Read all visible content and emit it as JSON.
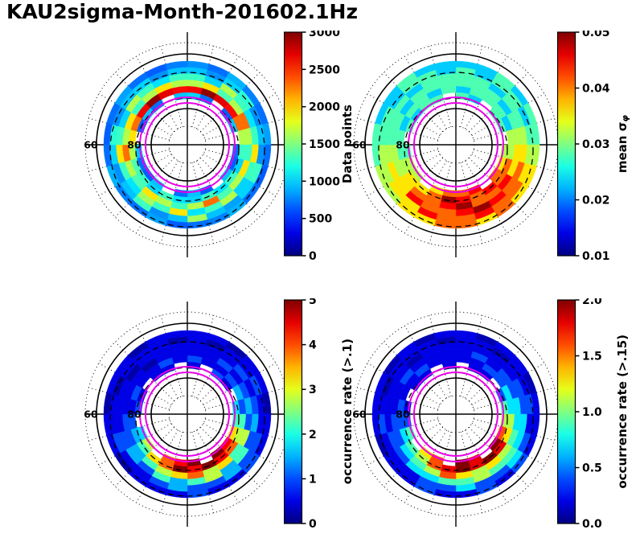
{
  "title": "KAU2sigma-Month-201602.1Hz",
  "colors": {
    "magenta_oval": "#e800e8",
    "grid": "#000000",
    "background": "#ffffff"
  },
  "chart_data": [
    {
      "type": "heatmap",
      "projection": "polar",
      "colormap": "jet",
      "colorbar_label": "Data points",
      "vmin": 0,
      "vmax": 3000,
      "tick_labels": [
        "0",
        "500",
        "1000",
        "1500",
        "2000",
        "2500",
        "3000"
      ],
      "tick_values": [
        0,
        500,
        1000,
        1500,
        2000,
        2500,
        3000
      ],
      "lat_tick_labels": [
        "60",
        "80"
      ],
      "sectors": 24,
      "overlays": {
        "magenta_model_oval": true,
        "dashed_black_contour": true,
        "solid_lat_circles": 2,
        "dotted_grid": true
      },
      "rings": [
        [
          800,
          700,
          900,
          750,
          700,
          850,
          700,
          650,
          700,
          900,
          750,
          700,
          650,
          850,
          700,
          750,
          900,
          700,
          650,
          700,
          850,
          700,
          650,
          750
        ],
        [
          950,
          800,
          1000,
          1250,
          800,
          950,
          800,
          1300,
          1000,
          850,
          950,
          1600,
          950,
          800,
          1300,
          950,
          800,
          1000,
          1250,
          800,
          950,
          1000,
          800,
          950
        ],
        [
          1300,
          1000,
          1650,
          1300,
          1050,
          1300,
          1950,
          1300,
          1000,
          1650,
          1300,
          1050,
          1950,
          1300,
          1600,
          1050,
          1300,
          1950,
          1300,
          1000,
          1650,
          1300,
          1050,
          1300
        ],
        [
          1650,
          1950,
          1350,
          1650,
          2300,
          1650,
          1300,
          1950,
          1650,
          1350,
          2300,
          1650,
          1300,
          1650,
          1950,
          1350,
          1650,
          2300,
          1650,
          1950,
          1300,
          1650,
          1950,
          1650
        ],
        [
          2650,
          2950,
          2700,
          2600,
          2300,
          1650,
          1300,
          1000,
          1300,
          1050,
          1300,
          1000,
          1050,
          1300,
          1000,
          1300,
          1350,
          1650,
          1950,
          2300,
          2650,
          2950,
          2700,
          2600
        ],
        [
          1000,
          700,
          null,
          650,
          950,
          null,
          700,
          650,
          950,
          null,
          650,
          950,
          700,
          null,
          950,
          650,
          700,
          950,
          null,
          650,
          950,
          700,
          null,
          950
        ]
      ]
    },
    {
      "type": "heatmap",
      "projection": "polar",
      "colormap": "jet",
      "colorbar_label": "mean σ_{φ}",
      "vmin": 0.01,
      "vmax": 0.05,
      "tick_labels": [
        "0.01",
        "0.02",
        "0.03",
        "0.04",
        "0.05"
      ],
      "tick_values": [
        0.01,
        0.02,
        0.03,
        0.04,
        0.05
      ],
      "lat_tick_labels": [
        "60",
        "80"
      ],
      "sectors": 24,
      "overlays": {
        "magenta_model_oval": true,
        "dashed_black_contour": true,
        "solid_lat_circles": 2,
        "dotted_grid": true
      },
      "rings": [
        [
          0.023,
          0.023,
          0.028,
          0.023,
          0.028,
          0.028,
          0.032,
          0.036,
          0.036,
          0.041,
          0.036,
          0.041,
          0.041,
          0.036,
          0.036,
          0.032,
          0.032,
          0.028,
          0.028,
          0.023,
          0.023,
          0.028,
          0.023,
          0.023
        ],
        [
          0.028,
          0.023,
          0.028,
          0.028,
          0.023,
          0.028,
          0.032,
          0.036,
          0.041,
          0.041,
          0.045,
          0.041,
          0.041,
          0.045,
          0.036,
          0.036,
          0.032,
          0.032,
          0.028,
          0.028,
          0.023,
          0.028,
          0.028,
          0.023
        ],
        [
          0.028,
          0.028,
          0.023,
          0.028,
          0.028,
          0.032,
          0.036,
          0.041,
          0.041,
          0.045,
          0.049,
          0.045,
          0.041,
          0.041,
          0.045,
          0.036,
          0.036,
          0.032,
          0.028,
          0.028,
          0.028,
          0.023,
          0.028,
          0.028
        ],
        [
          0.028,
          0.028,
          0.028,
          0.023,
          0.028,
          0.032,
          0.036,
          0.036,
          0.045,
          0.041,
          0.041,
          0.049,
          0.045,
          0.041,
          0.041,
          0.036,
          0.032,
          0.032,
          0.028,
          0.028,
          0.023,
          0.028,
          0.028,
          0.028
        ],
        [
          0.023,
          0.028,
          0.028,
          0.028,
          0.023,
          0.032,
          0.032,
          0.041,
          0.041,
          0.045,
          0.041,
          0.045,
          0.049,
          0.041,
          0.036,
          0.036,
          0.032,
          0.028,
          0.028,
          0.023,
          0.028,
          0.028,
          0.023,
          0.028
        ],
        [
          0.028,
          0.023,
          null,
          0.028,
          0.028,
          null,
          0.032,
          0.036,
          0.041,
          null,
          0.045,
          0.041,
          0.041,
          0.036,
          null,
          0.032,
          0.032,
          0.028,
          null,
          0.028,
          0.023,
          0.028,
          0.028,
          null
        ]
      ]
    },
    {
      "type": "heatmap",
      "projection": "polar",
      "colormap": "jet",
      "colorbar_label": "occurrence rate (>.1)",
      "vmin": 0,
      "vmax": 5,
      "tick_labels": [
        "0",
        "1",
        "2",
        "3",
        "4",
        "5"
      ],
      "tick_values": [
        0,
        1,
        2,
        3,
        4,
        5
      ],
      "lat_tick_labels": [
        "60",
        "80"
      ],
      "sectors": 24,
      "overlays": {
        "magenta_model_oval": true,
        "dashed_black_contour": true,
        "solid_lat_circles": 2,
        "dotted_grid": true
      },
      "rings": [
        [
          0.5,
          0.5,
          0.2,
          0.5,
          0.5,
          0.2,
          0.5,
          0.5,
          1.0,
          0.5,
          0.5,
          1.0,
          0.5,
          0.5,
          0.5,
          0.2,
          0.5,
          0.5,
          0.2,
          0.5,
          0.5,
          0.2,
          0.5,
          0.5
        ],
        [
          0.5,
          0.2,
          0.5,
          0.5,
          1.0,
          0.5,
          0.5,
          1.0,
          1.0,
          1.5,
          1.0,
          1.0,
          1.5,
          1.0,
          0.5,
          0.5,
          1.0,
          0.5,
          0.5,
          0.2,
          0.5,
          0.5,
          0.5,
          0.2
        ],
        [
          0.5,
          0.5,
          0.5,
          1.0,
          0.5,
          1.0,
          1.5,
          1.0,
          2.2,
          1.5,
          2.8,
          2.2,
          1.5,
          2.2,
          1.0,
          1.5,
          1.0,
          0.5,
          0.5,
          0.5,
          0.2,
          0.5,
          0.5,
          0.5
        ],
        [
          0.5,
          0.5,
          1.0,
          0.5,
          1.0,
          1.5,
          1.0,
          2.8,
          2.2,
          3.3,
          2.8,
          3.9,
          3.3,
          2.8,
          2.2,
          1.5,
          1.0,
          1.0,
          0.5,
          0.5,
          0.5,
          0.2,
          0.5,
          0.5
        ],
        [
          1.0,
          0.5,
          0.5,
          1.0,
          1.5,
          1.0,
          2.2,
          2.8,
          3.9,
          4.4,
          5.0,
          4.4,
          5.0,
          3.9,
          3.3,
          2.2,
          1.5,
          1.0,
          0.5,
          1.0,
          0.5,
          0.5,
          1.0,
          0.5
        ],
        [
          0.5,
          null,
          1.0,
          0.5,
          null,
          1.7,
          2.2,
          3.3,
          4.4,
          5.0,
          null,
          5.0,
          4.4,
          3.9,
          null,
          2.8,
          1.7,
          null,
          1.0,
          0.5,
          null,
          0.5,
          0.5,
          null
        ]
      ]
    },
    {
      "type": "heatmap",
      "projection": "polar",
      "colormap": "jet",
      "colorbar_label": "occurrence rate (>.15)",
      "vmin": 0,
      "vmax": 2,
      "tick_labels": [
        "0.0",
        "0.5",
        "1.0",
        "1.5",
        "2.0"
      ],
      "tick_values": [
        0,
        0.5,
        1.0,
        1.5,
        2.0
      ],
      "lat_tick_labels": [
        "60",
        "80"
      ],
      "sectors": 24,
      "overlays": {
        "magenta_model_oval": true,
        "dashed_black_contour": true,
        "solid_lat_circles": 2,
        "dotted_grid": true
      },
      "rings": [
        [
          0.2,
          0.1,
          0.2,
          0.2,
          0.1,
          0.2,
          0.2,
          0.2,
          0.4,
          0.2,
          0.4,
          0.2,
          0.2,
          0.4,
          0.2,
          0.2,
          0.1,
          0.2,
          0.2,
          0.2,
          0.1,
          0.2,
          0.1,
          0.2
        ],
        [
          0.2,
          0.2,
          0.1,
          0.2,
          0.2,
          0.4,
          0.2,
          0.4,
          0.7,
          0.4,
          0.4,
          0.7,
          0.4,
          0.4,
          0.2,
          0.2,
          0.2,
          0.4,
          0.2,
          0.1,
          0.2,
          0.2,
          0.2,
          0.1
        ],
        [
          0.2,
          0.2,
          0.2,
          0.2,
          0.4,
          0.4,
          0.7,
          0.7,
          0.9,
          0.9,
          1.1,
          0.9,
          0.9,
          0.7,
          0.7,
          0.4,
          0.4,
          0.2,
          0.2,
          0.2,
          0.2,
          0.1,
          0.2,
          0.2
        ],
        [
          0.2,
          0.4,
          0.2,
          0.4,
          0.4,
          0.7,
          0.7,
          0.9,
          1.1,
          1.3,
          1.1,
          1.3,
          1.6,
          1.1,
          0.9,
          0.7,
          0.4,
          0.4,
          0.2,
          0.2,
          0.4,
          0.2,
          0.2,
          0.2
        ],
        [
          0.2,
          0.2,
          0.4,
          0.4,
          0.7,
          0.7,
          1.1,
          1.3,
          1.8,
          2.0,
          1.8,
          2.0,
          1.8,
          1.6,
          1.1,
          0.9,
          0.7,
          0.4,
          0.4,
          0.2,
          0.2,
          0.4,
          0.2,
          0.2
        ],
        [
          null,
          0.2,
          0.2,
          null,
          0.4,
          0.9,
          1.1,
          1.6,
          2.0,
          null,
          1.8,
          2.0,
          null,
          1.6,
          1.3,
          null,
          0.9,
          0.4,
          0.2,
          null,
          0.2,
          0.2,
          null,
          0.2
        ]
      ]
    }
  ]
}
